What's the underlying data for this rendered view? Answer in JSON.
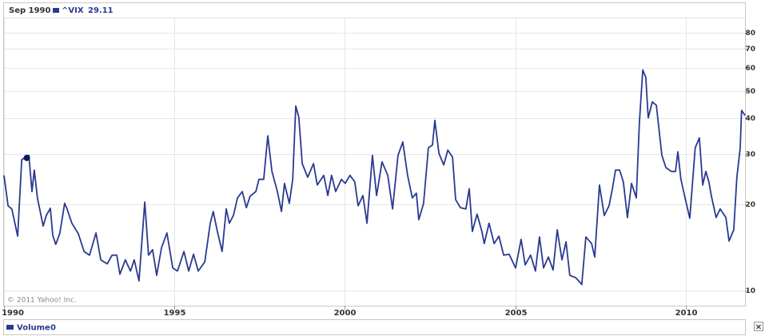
{
  "chart_data": {
    "type": "line",
    "log_y": true,
    "grid": true,
    "hover_label": "Sep 1990 :",
    "hover_index": 6,
    "copyright": "© 2011 Yahoo! Inc.",
    "volume_label": "Volume",
    "volume_value": 0,
    "close": "×",
    "xlim": [
      1990,
      2011.74
    ],
    "xticks": [
      1990,
      1995,
      2000,
      2005,
      2010
    ],
    "ylim": [
      8.85,
      90.2
    ],
    "yticks": [
      10,
      20,
      30,
      40,
      50,
      60,
      70,
      80
    ],
    "x": [
      1990.0,
      1990.12,
      1990.23,
      1990.4,
      1990.52,
      1990.58,
      1990.67,
      1990.73,
      1990.82,
      1990.89,
      1990.98,
      1991.15,
      1991.24,
      1991.36,
      1991.43,
      1991.52,
      1991.64,
      1991.78,
      1991.85,
      1991.99,
      1992.18,
      1992.35,
      1992.51,
      1992.7,
      1992.84,
      1993.03,
      1993.17,
      1993.31,
      1993.4,
      1993.56,
      1993.71,
      1993.82,
      1993.96,
      1994.13,
      1994.24,
      1994.36,
      1994.48,
      1994.62,
      1994.78,
      1994.95,
      1995.09,
      1995.28,
      1995.42,
      1995.56,
      1995.7,
      1995.89,
      1996.05,
      1996.14,
      1996.26,
      1996.4,
      1996.52,
      1996.61,
      1996.73,
      1996.85,
      1996.99,
      1997.11,
      1997.22,
      1997.39,
      1997.48,
      1997.62,
      1997.74,
      1997.86,
      1998.02,
      1998.14,
      1998.23,
      1998.37,
      1998.47,
      1998.56,
      1998.65,
      1998.75,
      1998.91,
      1999.08,
      1999.19,
      1999.38,
      1999.5,
      1999.61,
      1999.73,
      1999.9,
      2000.01,
      2000.15,
      2000.29,
      2000.39,
      2000.53,
      2000.65,
      2000.81,
      2000.93,
      2001.09,
      2001.26,
      2001.4,
      2001.56,
      2001.7,
      2001.84,
      2001.98,
      2002.1,
      2002.17,
      2002.31,
      2002.45,
      2002.57,
      2002.64,
      2002.76,
      2002.9,
      2003.02,
      2003.16,
      2003.25,
      2003.39,
      2003.55,
      2003.65,
      2003.74,
      2003.88,
      2004.02,
      2004.09,
      2004.23,
      2004.38,
      2004.52,
      2004.66,
      2004.82,
      2005.01,
      2005.17,
      2005.29,
      2005.45,
      2005.59,
      2005.71,
      2005.83,
      2005.97,
      2006.11,
      2006.23,
      2006.37,
      2006.49,
      2006.6,
      2006.77,
      2006.95,
      2007.07,
      2007.24,
      2007.33,
      2007.47,
      2007.61,
      2007.75,
      2007.85,
      2007.94,
      2008.06,
      2008.17,
      2008.29,
      2008.41,
      2008.55,
      2008.64,
      2008.74,
      2008.83,
      2008.9,
      2009.02,
      2009.14,
      2009.3,
      2009.42,
      2009.58,
      2009.7,
      2009.77,
      2009.86,
      2009.98,
      2010.12,
      2010.28,
      2010.4,
      2010.5,
      2010.59,
      2010.68,
      2010.75,
      2010.89,
      2011.01,
      2011.18,
      2011.27,
      2011.41,
      2011.5,
      2011.6,
      2011.64,
      2011.74
    ],
    "series": [
      {
        "name": "^VIX",
        "color": "#2a3a91",
        "values": [
          25.3,
          19.8,
          19.3,
          15.5,
          28.7,
          29.0,
          29.11,
          29.7,
          22.2,
          26.4,
          21.1,
          16.8,
          18.3,
          19.4,
          15.6,
          14.5,
          15.9,
          20.2,
          19.3,
          17.2,
          15.8,
          13.7,
          13.3,
          15.9,
          12.8,
          12.4,
          13.3,
          13.3,
          11.4,
          12.8,
          11.7,
          12.8,
          10.8,
          20.4,
          13.3,
          13.9,
          11.3,
          14.1,
          15.9,
          12.0,
          11.7,
          13.7,
          11.7,
          13.4,
          11.7,
          12.6,
          17.2,
          18.9,
          16.1,
          13.7,
          19.3,
          17.2,
          18.3,
          21.1,
          22.2,
          19.5,
          21.4,
          22.2,
          24.5,
          24.5,
          34.8,
          26.1,
          22.2,
          18.9,
          23.7,
          20.2,
          24.5,
          44.2,
          40.4,
          27.8,
          24.9,
          27.8,
          23.4,
          25.3,
          21.5,
          25.3,
          22.2,
          24.5,
          23.7,
          25.3,
          24.0,
          19.8,
          21.5,
          17.2,
          29.7,
          21.5,
          28.2,
          25.3,
          19.3,
          29.7,
          33.1,
          25.3,
          21.1,
          21.9,
          17.7,
          20.2,
          31.6,
          32.3,
          39.4,
          30.2,
          27.5,
          31.0,
          29.3,
          20.8,
          19.5,
          19.3,
          22.7,
          16.1,
          18.5,
          16.1,
          14.6,
          17.2,
          14.6,
          15.5,
          13.3,
          13.4,
          12.0,
          15.1,
          12.3,
          13.3,
          11.7,
          15.4,
          12.0,
          13.1,
          11.8,
          16.3,
          12.8,
          14.8,
          11.3,
          11.1,
          10.5,
          15.4,
          14.6,
          13.1,
          23.4,
          18.3,
          19.8,
          22.7,
          26.4,
          26.4,
          24.0,
          18.0,
          23.7,
          21.1,
          38.4,
          59.1,
          55.7,
          40.2,
          45.7,
          44.5,
          29.7,
          26.9,
          26.1,
          26.1,
          30.6,
          24.5,
          21.1,
          17.9,
          31.6,
          34.2,
          23.4,
          26.1,
          24.0,
          21.5,
          18.0,
          19.3,
          18.0,
          14.9,
          16.3,
          24.9,
          31.6,
          42.7,
          41.0
        ]
      }
    ]
  }
}
